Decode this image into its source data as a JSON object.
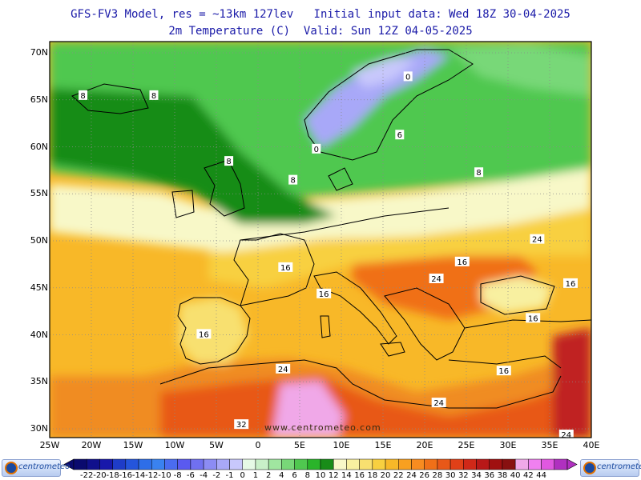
{
  "header": {
    "title_line1": "GFS-FV3 Model, res = ~13km 127lev   Initial input data: Wed 18Z 30-04-2025",
    "title_line2": "2m Temperature (C)  Valid: Sun 12Z 04-05-2025"
  },
  "axes": {
    "latitudes": [
      "70N",
      "65N",
      "60N",
      "55N",
      "50N",
      "45N",
      "40N",
      "35N",
      "30N"
    ],
    "longitudes": [
      "25W",
      "20W",
      "15W",
      "10W",
      "5W",
      "0",
      "5E",
      "10E",
      "15E",
      "20E",
      "25E",
      "30E",
      "35E",
      "40E"
    ]
  },
  "contour_labels": [
    {
      "text": "8",
      "lon": -21,
      "lat": 65.5
    },
    {
      "text": "8",
      "lon": -12.5,
      "lat": 65.5
    },
    {
      "text": "0",
      "lon": 18,
      "lat": 67.5
    },
    {
      "text": "6",
      "lon": 17,
      "lat": 61.3
    },
    {
      "text": "0",
      "lon": 7,
      "lat": 59.8
    },
    {
      "text": "8",
      "lon": -3.5,
      "lat": 58.5
    },
    {
      "text": "8",
      "lon": 4.2,
      "lat": 56.5
    },
    {
      "text": "8",
      "lon": 26.5,
      "lat": 57.3
    },
    {
      "text": "24",
      "lon": 33.5,
      "lat": 50.2
    },
    {
      "text": "16",
      "lon": 3.3,
      "lat": 47.2
    },
    {
      "text": "16",
      "lon": 24.5,
      "lat": 47.8
    },
    {
      "text": "24",
      "lon": 21.4,
      "lat": 46.0
    },
    {
      "text": "16",
      "lon": 37.5,
      "lat": 45.5
    },
    {
      "text": "16",
      "lon": 7.9,
      "lat": 44.4
    },
    {
      "text": "16",
      "lon": 33,
      "lat": 41.8
    },
    {
      "text": "16",
      "lon": -6.5,
      "lat": 40.1
    },
    {
      "text": "24",
      "lon": 3,
      "lat": 36.4
    },
    {
      "text": "16",
      "lon": 29.5,
      "lat": 36.2
    },
    {
      "text": "24",
      "lon": 21.7,
      "lat": 32.8
    },
    {
      "text": "32",
      "lon": -2,
      "lat": 30.5
    },
    {
      "text": "24",
      "lon": 37,
      "lat": 29.4
    }
  ],
  "legend": {
    "labels": [
      "-22",
      "-20",
      "-18",
      "-16",
      "-14",
      "-12",
      "-10",
      "-8",
      "-6",
      "-4",
      "-2",
      "-1",
      "0",
      "1",
      "2",
      "4",
      "6",
      "8",
      "10",
      "12",
      "14",
      "16",
      "18",
      "20",
      "22",
      "24",
      "26",
      "28",
      "30",
      "32",
      "34",
      "36",
      "38",
      "40",
      "42",
      "44"
    ],
    "colors": [
      "#0a0a6e",
      "#10108c",
      "#1818aa",
      "#1e3cc8",
      "#2455dc",
      "#2e6ee8",
      "#3a82f0",
      "#4a6cf0",
      "#5a5af0",
      "#7070f0",
      "#8c8cf4",
      "#a8a8f8",
      "#c8c8fc",
      "#e6fae6",
      "#c8f0c8",
      "#a0e6a0",
      "#78d878",
      "#50c850",
      "#2ab42a",
      "#188c18",
      "#f8f8c8",
      "#f8f0a0",
      "#f8e070",
      "#f8d040",
      "#f8b828",
      "#f8a020",
      "#f88c20",
      "#f07018",
      "#e85818",
      "#e04018",
      "#d02818",
      "#b81818",
      "#a01010",
      "#881010",
      "#f0a8e8",
      "#f080f0",
      "#e058e0",
      "#b030c0"
    ],
    "logo_text": "centrometeo"
  },
  "watermark": "www.centrometeo.com"
}
